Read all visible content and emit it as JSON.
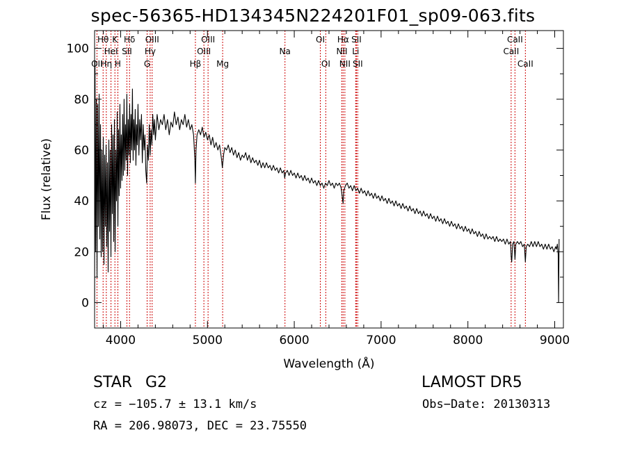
{
  "title": "spec-56365-HD134345N224201F01_sp09-063.fits",
  "info": {
    "object_type": "STAR",
    "object_class": "G2",
    "survey": "LAMOST DR5",
    "velocity": "cz = −105.7 ± 13.1 km/s",
    "obs_date": "Obs−Date: 20130313",
    "coords": "RA = 206.98073, DEC =  23.75550"
  },
  "chart_data": {
    "type": "line",
    "xlabel": "Wavelength (Å)",
    "ylabel": "Flux (relative)",
    "xlim": [
      3700,
      9100
    ],
    "ylim": [
      -10,
      107
    ],
    "xticks": [
      {
        "v": 4000,
        "label": "4000"
      },
      {
        "v": 5000,
        "label": "5000"
      },
      {
        "v": 6000,
        "label": "6000"
      },
      {
        "v": 7000,
        "label": "7000"
      },
      {
        "v": 8000,
        "label": "8000"
      },
      {
        "v": 9000,
        "label": "9000"
      }
    ],
    "yticks": [
      {
        "v": 0,
        "label": "0"
      },
      {
        "v": 20,
        "label": "20"
      },
      {
        "v": 40,
        "label": "40"
      },
      {
        "v": 60,
        "label": "60"
      },
      {
        "v": 80,
        "label": "80"
      },
      {
        "v": 100,
        "label": "100"
      }
    ],
    "line_color": "#000000",
    "marker_color": "#cc0000",
    "spectrum": [
      [
        3700,
        0
      ],
      [
        3705,
        95
      ],
      [
        3712,
        20
      ],
      [
        3720,
        80
      ],
      [
        3728,
        10
      ],
      [
        3736,
        78
      ],
      [
        3744,
        30
      ],
      [
        3752,
        82
      ],
      [
        3760,
        25
      ],
      [
        3768,
        70
      ],
      [
        3776,
        18
      ],
      [
        3784,
        60
      ],
      [
        3792,
        20
      ],
      [
        3800,
        65
      ],
      [
        3808,
        15
      ],
      [
        3816,
        58
      ],
      [
        3824,
        30
      ],
      [
        3832,
        62
      ],
      [
        3840,
        22
      ],
      [
        3848,
        55
      ],
      [
        3856,
        12
      ],
      [
        3864,
        64
      ],
      [
        3872,
        28
      ],
      [
        3880,
        60
      ],
      [
        3888,
        18
      ],
      [
        3896,
        70
      ],
      [
        3904,
        35
      ],
      [
        3912,
        66
      ],
      [
        3920,
        24
      ],
      [
        3928,
        72
      ],
      [
        3936,
        20
      ],
      [
        3944,
        60
      ],
      [
        3952,
        40
      ],
      [
        3960,
        75
      ],
      [
        3968,
        30
      ],
      [
        3976,
        68
      ],
      [
        3984,
        42
      ],
      [
        3992,
        78
      ],
      [
        4000,
        45
      ],
      [
        4008,
        66
      ],
      [
        4016,
        48
      ],
      [
        4024,
        74
      ],
      [
        4032,
        50
      ],
      [
        4040,
        80
      ],
      [
        4048,
        52
      ],
      [
        4056,
        70
      ],
      [
        4064,
        56
      ],
      [
        4072,
        82
      ],
      [
        4080,
        50
      ],
      [
        4088,
        72
      ],
      [
        4096,
        58
      ],
      [
        4104,
        78
      ],
      [
        4112,
        55
      ],
      [
        4120,
        74
      ],
      [
        4128,
        60
      ],
      [
        4136,
        84
      ],
      [
        4144,
        56
      ],
      [
        4152,
        72
      ],
      [
        4160,
        60
      ],
      [
        4168,
        76
      ],
      [
        4176,
        54
      ],
      [
        4184,
        70
      ],
      [
        4192,
        62
      ],
      [
        4200,
        78
      ],
      [
        4210,
        58
      ],
      [
        4220,
        72
      ],
      [
        4230,
        64
      ],
      [
        4240,
        74
      ],
      [
        4250,
        55
      ],
      [
        4260,
        70
      ],
      [
        4270,
        60
      ],
      [
        4280,
        66
      ],
      [
        4290,
        52
      ],
      [
        4300,
        47
      ],
      [
        4310,
        62
      ],
      [
        4320,
        56
      ],
      [
        4330,
        70
      ],
      [
        4340,
        58
      ],
      [
        4350,
        68
      ],
      [
        4360,
        62
      ],
      [
        4370,
        74
      ],
      [
        4380,
        66
      ],
      [
        4390,
        72
      ],
      [
        4400,
        64
      ],
      [
        4420,
        74
      ],
      [
        4440,
        68
      ],
      [
        4460,
        72
      ],
      [
        4480,
        70
      ],
      [
        4500,
        74
      ],
      [
        4520,
        68
      ],
      [
        4540,
        72
      ],
      [
        4560,
        66
      ],
      [
        4580,
        71
      ],
      [
        4600,
        69
      ],
      [
        4620,
        75
      ],
      [
        4640,
        70
      ],
      [
        4660,
        73
      ],
      [
        4680,
        68
      ],
      [
        4700,
        72
      ],
      [
        4720,
        70
      ],
      [
        4740,
        74
      ],
      [
        4760,
        69
      ],
      [
        4780,
        72
      ],
      [
        4800,
        68
      ],
      [
        4820,
        70
      ],
      [
        4840,
        66
      ],
      [
        4855,
        56
      ],
      [
        4861,
        47
      ],
      [
        4868,
        60
      ],
      [
        4880,
        66
      ],
      [
        4900,
        68
      ],
      [
        4920,
        66
      ],
      [
        4940,
        69
      ],
      [
        4960,
        65
      ],
      [
        4980,
        67
      ],
      [
        5000,
        64
      ],
      [
        5020,
        66
      ],
      [
        5040,
        62
      ],
      [
        5060,
        65
      ],
      [
        5080,
        61
      ],
      [
        5100,
        63
      ],
      [
        5120,
        60
      ],
      [
        5140,
        62
      ],
      [
        5160,
        57
      ],
      [
        5172,
        53
      ],
      [
        5185,
        58
      ],
      [
        5200,
        61
      ],
      [
        5220,
        60
      ],
      [
        5240,
        62
      ],
      [
        5260,
        59
      ],
      [
        5280,
        61
      ],
      [
        5300,
        58
      ],
      [
        5320,
        60
      ],
      [
        5340,
        57
      ],
      [
        5360,
        59
      ],
      [
        5380,
        56
      ],
      [
        5400,
        58
      ],
      [
        5420,
        57
      ],
      [
        5440,
        59
      ],
      [
        5460,
        56
      ],
      [
        5480,
        58
      ],
      [
        5500,
        55
      ],
      [
        5520,
        57
      ],
      [
        5540,
        55
      ],
      [
        5560,
        56
      ],
      [
        5580,
        54
      ],
      [
        5600,
        56
      ],
      [
        5620,
        53
      ],
      [
        5640,
        55
      ],
      [
        5660,
        53
      ],
      [
        5680,
        55
      ],
      [
        5700,
        53
      ],
      [
        5720,
        54
      ],
      [
        5740,
        52
      ],
      [
        5760,
        54
      ],
      [
        5780,
        52
      ],
      [
        5800,
        53
      ],
      [
        5820,
        51
      ],
      [
        5840,
        53
      ],
      [
        5860,
        51
      ],
      [
        5880,
        52
      ],
      [
        5890,
        49
      ],
      [
        5900,
        51
      ],
      [
        5920,
        52
      ],
      [
        5940,
        50
      ],
      [
        5960,
        52
      ],
      [
        5980,
        50
      ],
      [
        6000,
        51
      ],
      [
        6020,
        49
      ],
      [
        6040,
        51
      ],
      [
        6060,
        49
      ],
      [
        6080,
        50
      ],
      [
        6100,
        48
      ],
      [
        6120,
        50
      ],
      [
        6140,
        48
      ],
      [
        6160,
        49
      ],
      [
        6180,
        47
      ],
      [
        6200,
        49
      ],
      [
        6220,
        47
      ],
      [
        6240,
        48
      ],
      [
        6260,
        46
      ],
      [
        6280,
        48
      ],
      [
        6300,
        46
      ],
      [
        6320,
        47
      ],
      [
        6340,
        45
      ],
      [
        6360,
        47
      ],
      [
        6380,
        46
      ],
      [
        6400,
        48
      ],
      [
        6420,
        46
      ],
      [
        6440,
        47
      ],
      [
        6460,
        45
      ],
      [
        6480,
        47
      ],
      [
        6500,
        46
      ],
      [
        6520,
        47
      ],
      [
        6540,
        45
      ],
      [
        6555,
        41
      ],
      [
        6563,
        39
      ],
      [
        6570,
        44
      ],
      [
        6590,
        46
      ],
      [
        6610,
        47
      ],
      [
        6630,
        45
      ],
      [
        6650,
        46
      ],
      [
        6670,
        44
      ],
      [
        6690,
        46
      ],
      [
        6710,
        44
      ],
      [
        6730,
        45
      ],
      [
        6750,
        43
      ],
      [
        6770,
        45
      ],
      [
        6790,
        43
      ],
      [
        6810,
        44
      ],
      [
        6830,
        42
      ],
      [
        6850,
        44
      ],
      [
        6870,
        42
      ],
      [
        6890,
        43
      ],
      [
        6910,
        41
      ],
      [
        6930,
        43
      ],
      [
        6950,
        41
      ],
      [
        6970,
        42
      ],
      [
        6990,
        40
      ],
      [
        7010,
        42
      ],
      [
        7030,
        40
      ],
      [
        7050,
        41
      ],
      [
        7070,
        39
      ],
      [
        7090,
        41
      ],
      [
        7110,
        39
      ],
      [
        7130,
        40
      ],
      [
        7150,
        38
      ],
      [
        7170,
        40
      ],
      [
        7190,
        38
      ],
      [
        7210,
        39
      ],
      [
        7230,
        37
      ],
      [
        7250,
        39
      ],
      [
        7270,
        37
      ],
      [
        7290,
        38
      ],
      [
        7310,
        36
      ],
      [
        7330,
        38
      ],
      [
        7350,
        36
      ],
      [
        7370,
        37
      ],
      [
        7390,
        35
      ],
      [
        7410,
        37
      ],
      [
        7430,
        35
      ],
      [
        7450,
        36
      ],
      [
        7470,
        34
      ],
      [
        7490,
        36
      ],
      [
        7510,
        34
      ],
      [
        7530,
        35
      ],
      [
        7550,
        33
      ],
      [
        7570,
        35
      ],
      [
        7590,
        33
      ],
      [
        7610,
        34
      ],
      [
        7630,
        32
      ],
      [
        7650,
        34
      ],
      [
        7670,
        32
      ],
      [
        7690,
        33
      ],
      [
        7710,
        31
      ],
      [
        7730,
        33
      ],
      [
        7750,
        31
      ],
      [
        7770,
        32
      ],
      [
        7790,
        30
      ],
      [
        7810,
        32
      ],
      [
        7830,
        30
      ],
      [
        7850,
        31
      ],
      [
        7870,
        29
      ],
      [
        7890,
        31
      ],
      [
        7910,
        29
      ],
      [
        7930,
        30
      ],
      [
        7950,
        28
      ],
      [
        7970,
        30
      ],
      [
        7990,
        28
      ],
      [
        8010,
        29
      ],
      [
        8030,
        27
      ],
      [
        8050,
        29
      ],
      [
        8070,
        27
      ],
      [
        8090,
        28
      ],
      [
        8110,
        26
      ],
      [
        8130,
        28
      ],
      [
        8150,
        26
      ],
      [
        8170,
        27
      ],
      [
        8190,
        25
      ],
      [
        8210,
        27
      ],
      [
        8230,
        25
      ],
      [
        8250,
        26
      ],
      [
        8270,
        25
      ],
      [
        8290,
        26
      ],
      [
        8310,
        24
      ],
      [
        8330,
        26
      ],
      [
        8350,
        24
      ],
      [
        8370,
        25
      ],
      [
        8390,
        24
      ],
      [
        8410,
        25
      ],
      [
        8430,
        23
      ],
      [
        8450,
        25
      ],
      [
        8470,
        23
      ],
      [
        8490,
        24
      ],
      [
        8498,
        18
      ],
      [
        8505,
        16
      ],
      [
        8515,
        23
      ],
      [
        8530,
        24
      ],
      [
        8542,
        17
      ],
      [
        8552,
        23
      ],
      [
        8570,
        24
      ],
      [
        8590,
        23
      ],
      [
        8610,
        24
      ],
      [
        8630,
        22
      ],
      [
        8650,
        23
      ],
      [
        8662,
        16
      ],
      [
        8672,
        22
      ],
      [
        8690,
        23
      ],
      [
        8710,
        22
      ],
      [
        8730,
        24
      ],
      [
        8750,
        22
      ],
      [
        8770,
        24
      ],
      [
        8790,
        22
      ],
      [
        8810,
        24
      ],
      [
        8830,
        22
      ],
      [
        8850,
        23
      ],
      [
        8870,
        21
      ],
      [
        8890,
        23
      ],
      [
        8910,
        21
      ],
      [
        8930,
        23
      ],
      [
        8950,
        21
      ],
      [
        8970,
        22
      ],
      [
        8990,
        20
      ],
      [
        9010,
        22
      ],
      [
        9020,
        21
      ],
      [
        9030,
        23
      ],
      [
        9040,
        19
      ],
      [
        9045,
        0
      ],
      [
        9050,
        25
      ]
    ],
    "line_markers": [
      {
        "label": "OII",
        "wl": 3727,
        "row": 3
      },
      {
        "label": "Hθ",
        "wl": 3798,
        "row": 1
      },
      {
        "label": "Hη",
        "wl": 3835,
        "row": 3
      },
      {
        "label": "HeI",
        "wl": 3889,
        "row": 2
      },
      {
        "label": "K",
        "wl": 3934,
        "row": 1
      },
      {
        "label": "H",
        "wl": 3968,
        "row": 3
      },
      {
        "label": "Hδ",
        "wl": 4102,
        "row": 1
      },
      {
        "label": "SII",
        "wl": 4072,
        "row": 2
      },
      {
        "label": "OIII",
        "wl": 4363,
        "row": 1
      },
      {
        "label": "Hγ",
        "wl": 4340,
        "row": 2
      },
      {
        "label": "G",
        "wl": 4305,
        "row": 3
      },
      {
        "label": "Hβ",
        "wl": 4861,
        "row": 3
      },
      {
        "label": "OIII",
        "wl": 4959,
        "row": 2
      },
      {
        "label": "OIII",
        "wl": 5007,
        "row": 1
      },
      {
        "label": "Mg",
        "wl": 5175,
        "row": 3
      },
      {
        "label": "Na",
        "wl": 5893,
        "row": 2
      },
      {
        "label": "OI",
        "wl": 6300,
        "row": 1
      },
      {
        "label": "OI",
        "wl": 6363,
        "row": 3
      },
      {
        "label": "NII",
        "wl": 6548,
        "row": 2
      },
      {
        "label": "Hα",
        "wl": 6563,
        "row": 1
      },
      {
        "label": "NII",
        "wl": 6583,
        "row": 3
      },
      {
        "label": "Li",
        "wl": 6707,
        "row": 2
      },
      {
        "label": "SII",
        "wl": 6716,
        "row": 1
      },
      {
        "label": "SII",
        "wl": 6731,
        "row": 3
      },
      {
        "label": "CaII",
        "wl": 8498,
        "row": 2
      },
      {
        "label": "CaII",
        "wl": 8542,
        "row": 1
      },
      {
        "label": "CaII",
        "wl": 8662,
        "row": 3
      }
    ]
  }
}
